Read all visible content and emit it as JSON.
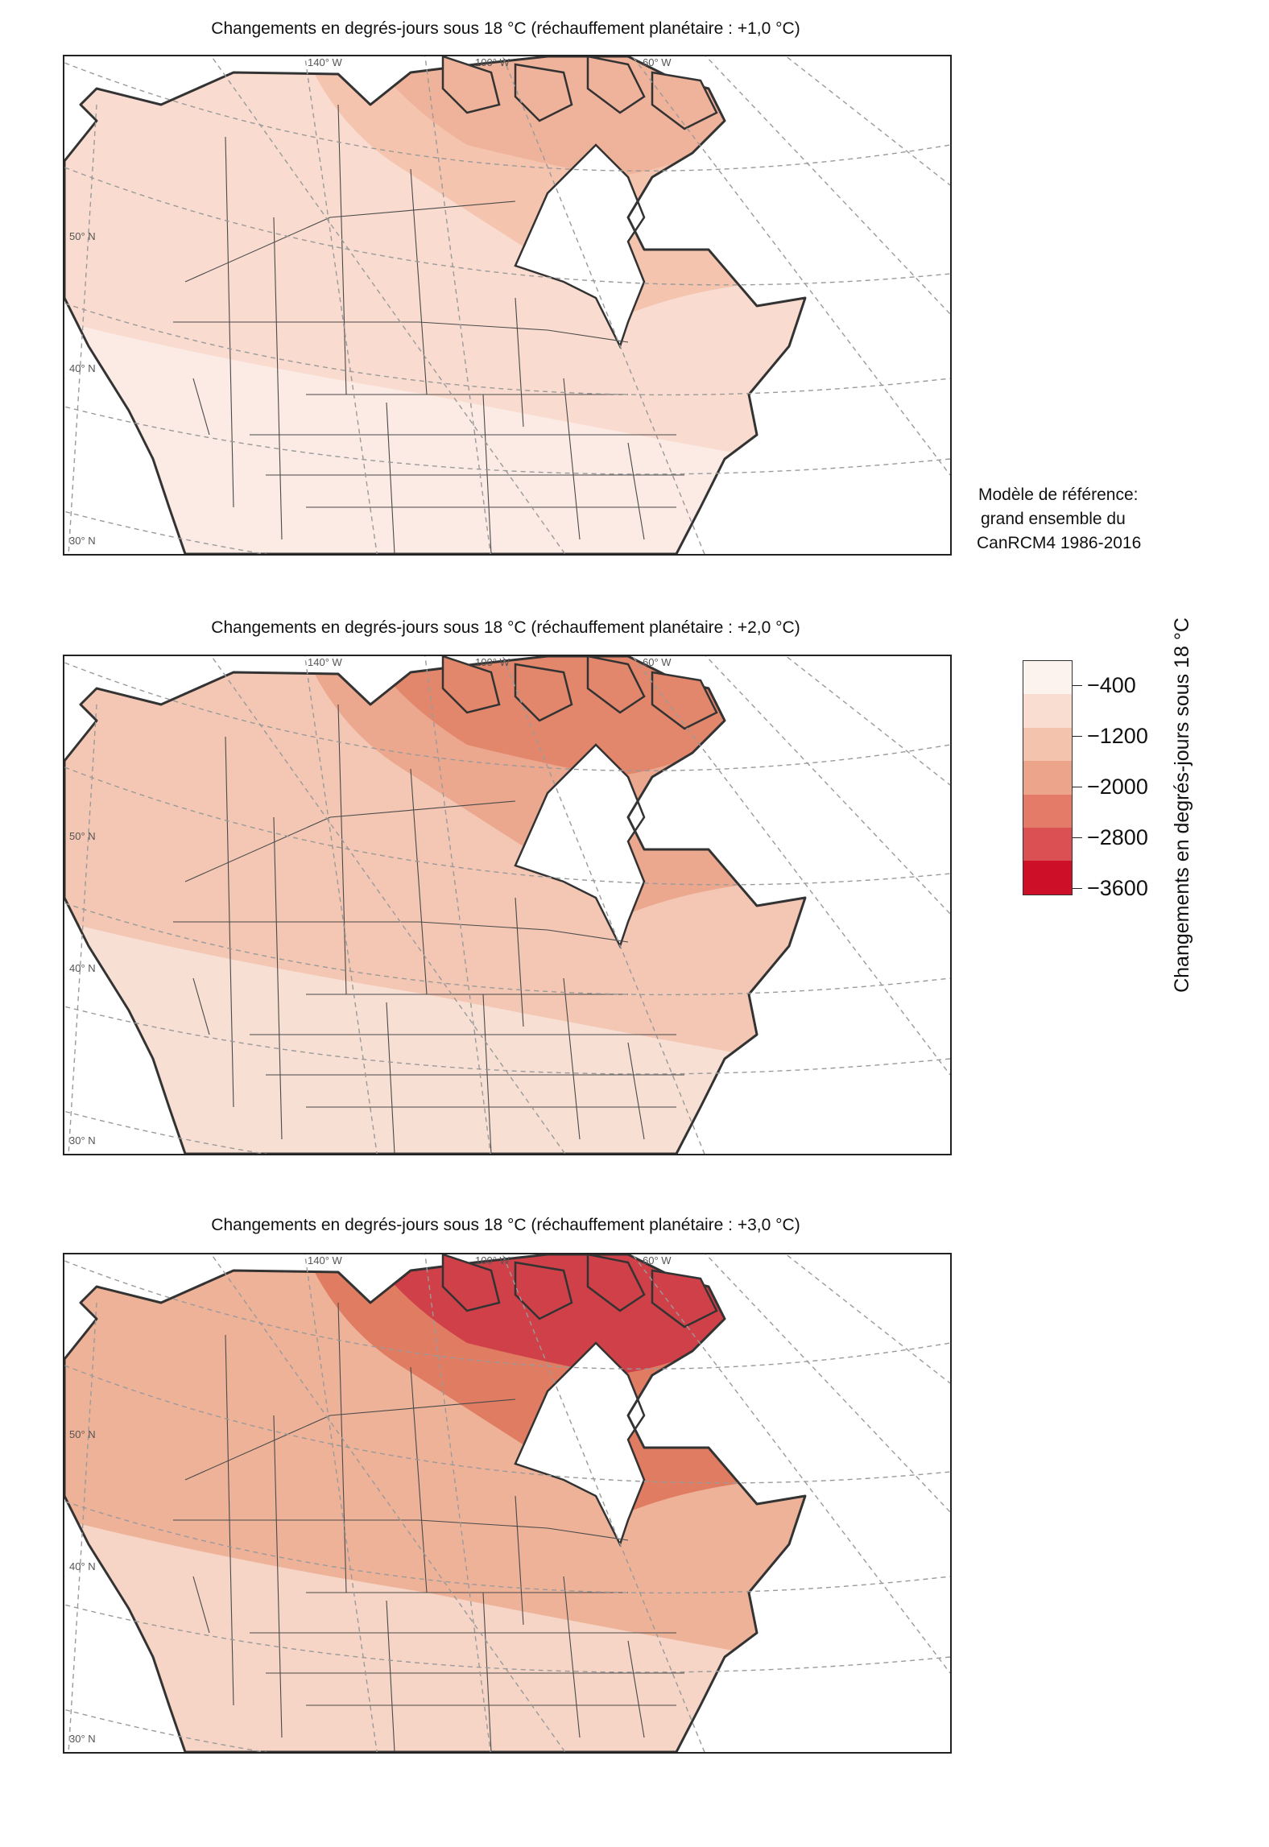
{
  "map1": {
    "title": "Changements en degrés-jours sous 18 °C (réchauffement planétaire : +1,0 °C)",
    "fills": {
      "south": "#fbebe4",
      "mid": "#f9dccf",
      "north": "#f4c4ae",
      "arctic": "#efb29b"
    }
  },
  "map2": {
    "title": "Changements en degrés-jours sous 18 °C (réchauffement planétaire : +2,0 °C)",
    "fills": {
      "south": "#f8dfd4",
      "mid": "#f3c7b3",
      "north": "#eba88f",
      "arctic": "#e3876c"
    }
  },
  "map3": {
    "title": "Changements en degrés-jours sous 18 °C (réchauffement planétaire : +3,0 °C)",
    "fills": {
      "south": "#f6d5c6",
      "mid": "#eeb299",
      "north": "#e07c62",
      "arctic": "#d04048"
    }
  },
  "graticule": {
    "lon_labels": [
      "140° W",
      "100° W",
      "60° W"
    ],
    "lat_labels": [
      "50° N",
      "40° N",
      "30° N"
    ]
  },
  "reference_model": {
    "line1": "Modèle de référence:",
    "line2": "grand ensemble du",
    "line3": "CanRCM4 1986-2016"
  },
  "legend": {
    "title": "Changements en degrés-jours sous 18 °C",
    "colors": [
      "#fcf2ee",
      "#f9ddd1",
      "#f3c3ad",
      "#eca58b",
      "#e47a68",
      "#da5053",
      "#cd0f27"
    ],
    "labels": [
      "−400",
      "−1200",
      "−2000",
      "−2800",
      "−3600"
    ]
  }
}
